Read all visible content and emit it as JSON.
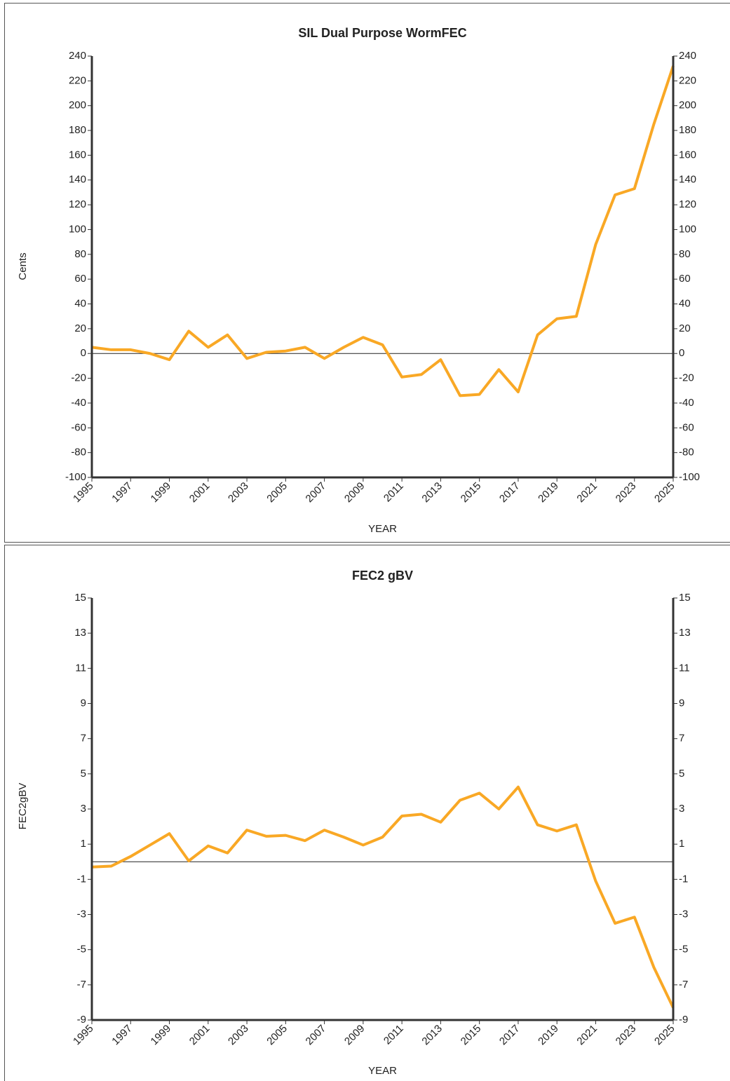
{
  "chart_data": [
    {
      "type": "line",
      "title": "SIL Dual Purpose WormFEC",
      "y_label": "Cents",
      "x_label": "YEAR",
      "x": [
        1995,
        1996,
        1997,
        1998,
        1999,
        2000,
        2001,
        2002,
        2003,
        2004,
        2005,
        2006,
        2007,
        2008,
        2009,
        2010,
        2011,
        2012,
        2013,
        2014,
        2015,
        2016,
        2017,
        2018,
        2019,
        2020,
        2021,
        2022,
        2023,
        2024,
        2025
      ],
      "series": [
        {
          "name": "WormFEC",
          "color": "#f9a825",
          "values": [
            5,
            3,
            3,
            0,
            -5,
            18,
            5,
            15,
            -4,
            1,
            2,
            5,
            -4,
            5,
            13,
            7,
            -19,
            -17,
            -5,
            -34,
            -33,
            -13,
            -31,
            15,
            28,
            30,
            88,
            128,
            133,
            185,
            232
          ]
        }
      ],
      "xlim": [
        1995,
        2025
      ],
      "xticks": [
        1995,
        1997,
        1999,
        2001,
        2003,
        2005,
        2007,
        2009,
        2011,
        2013,
        2015,
        2017,
        2019,
        2021,
        2023,
        2025
      ],
      "ylim": [
        -100,
        240
      ],
      "yticks": [
        -100,
        -80,
        -60,
        -40,
        -20,
        0,
        20,
        40,
        60,
        80,
        100,
        120,
        140,
        160,
        180,
        200,
        220,
        240
      ]
    },
    {
      "type": "line",
      "title": "FEC2 gBV",
      "y_label": "FEC2gBV",
      "x_label": "YEAR",
      "x": [
        1995,
        1996,
        1997,
        1998,
        1999,
        2000,
        2001,
        2002,
        2003,
        2004,
        2005,
        2006,
        2007,
        2008,
        2009,
        2010,
        2011,
        2012,
        2013,
        2014,
        2015,
        2016,
        2017,
        2018,
        2019,
        2020,
        2021,
        2022,
        2023,
        2024,
        2025
      ],
      "series": [
        {
          "name": "FEC2gBV",
          "color": "#f9a825",
          "values": [
            -0.3,
            -0.25,
            0.3,
            0.95,
            1.6,
            0.05,
            0.9,
            0.5,
            1.8,
            1.45,
            1.5,
            1.2,
            1.8,
            1.4,
            0.95,
            1.4,
            2.6,
            2.7,
            2.25,
            3.5,
            3.9,
            3.0,
            4.25,
            2.1,
            1.75,
            2.1,
            -1.1,
            -3.5,
            -3.15,
            -6.0,
            -8.3
          ]
        }
      ],
      "xlim": [
        1995,
        2025
      ],
      "xticks": [
        1995,
        1997,
        1999,
        2001,
        2003,
        2005,
        2007,
        2009,
        2011,
        2013,
        2015,
        2017,
        2019,
        2021,
        2023,
        2025
      ],
      "ylim": [
        -9,
        15
      ],
      "yticks": [
        -9,
        -7,
        -5,
        -3,
        -1,
        1,
        3,
        5,
        7,
        9,
        11,
        13,
        15
      ]
    }
  ]
}
